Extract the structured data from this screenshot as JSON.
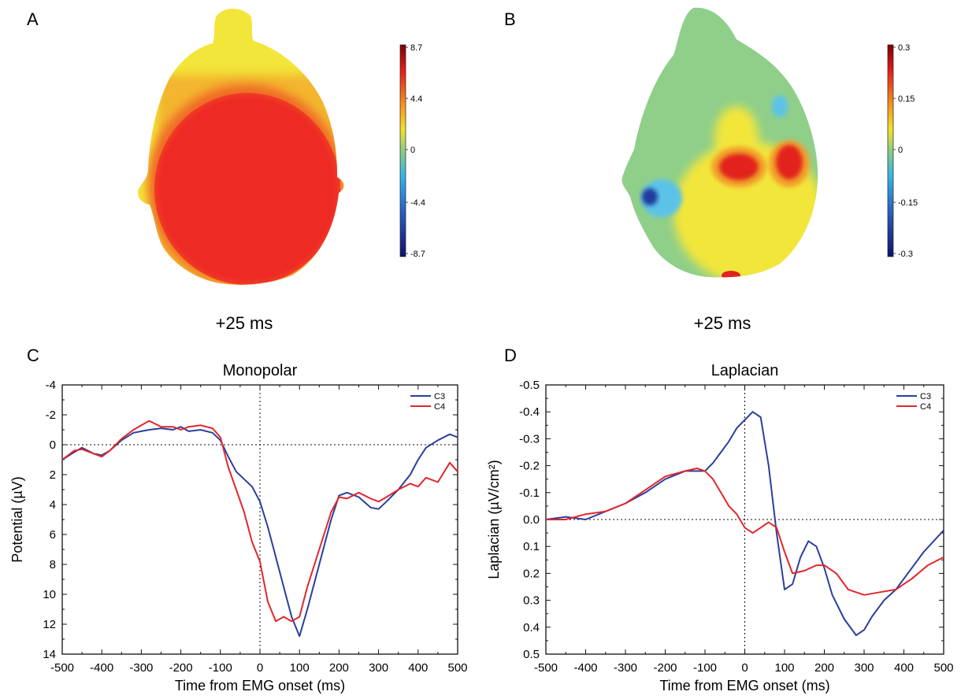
{
  "panels": {
    "A": {
      "letter": "A",
      "time_label": "+25 ms",
      "colorbar": {
        "ticks": [
          "8.7",
          "4.4",
          "0",
          "-4.4",
          "-8.7"
        ],
        "min": -8.7,
        "max": 8.7
      }
    },
    "B": {
      "letter": "B",
      "time_label": "+25 ms",
      "colorbar": {
        "ticks": [
          "0.3",
          "0.15",
          "0",
          "-0.15",
          "-0.3"
        ],
        "min": -0.3,
        "max": 0.3
      }
    },
    "C": {
      "letter": "C"
    },
    "D": {
      "letter": "D"
    }
  },
  "colors": {
    "C3": "#2a3f9e",
    "C4": "#e3262b",
    "head_A_high": "#ee2a24",
    "head_A_low": "#f3e63a",
    "head_B_bg": "#8fcf8a"
  },
  "chart_data": [
    {
      "type": "line",
      "title": "Monopolar",
      "xlabel": "Time from EMG onset (ms)",
      "ylabel": "Potential (µV)",
      "xlim": [
        -500,
        500
      ],
      "ylim": [
        -4,
        14
      ],
      "y_inverted": true,
      "xticks": [
        -500,
        -400,
        -300,
        -200,
        -100,
        0,
        100,
        200,
        300,
        400,
        500
      ],
      "yticks": [
        -4,
        -2,
        0,
        2,
        4,
        6,
        8,
        10,
        12,
        14
      ],
      "ytick_labels": [
        "-4",
        "-2",
        "0",
        "2",
        "4",
        "6",
        "8",
        "10",
        "12",
        "14"
      ],
      "grid": false,
      "legend": "top-right",
      "reference_lines": {
        "x": 0,
        "y": 0
      },
      "series": [
        {
          "name": "C3",
          "color": "#2a3f9e",
          "x": [
            -500,
            -470,
            -450,
            -420,
            -400,
            -380,
            -350,
            -320,
            -300,
            -280,
            -250,
            -220,
            -200,
            -180,
            -150,
            -120,
            -100,
            -80,
            -60,
            -40,
            -20,
            0,
            20,
            40,
            60,
            80,
            100,
            120,
            150,
            180,
            200,
            220,
            250,
            280,
            300,
            320,
            350,
            380,
            400,
            420,
            450,
            480,
            500
          ],
          "y": [
            1.0,
            0.5,
            0.2,
            0.6,
            0.7,
            0.4,
            -0.3,
            -0.8,
            -0.9,
            -1.0,
            -1.1,
            -1.0,
            -1.2,
            -0.9,
            -1.0,
            -0.8,
            -0.3,
            0.8,
            1.8,
            2.3,
            2.8,
            3.8,
            5.5,
            7.5,
            9.5,
            11.5,
            12.8,
            11.0,
            8.0,
            5.0,
            3.4,
            3.2,
            3.5,
            4.2,
            4.3,
            3.8,
            3.0,
            2.0,
            1.0,
            0.2,
            -0.3,
            -0.7,
            -0.5
          ]
        },
        {
          "name": "C4",
          "color": "#e3262b",
          "x": [
            -500,
            -470,
            -450,
            -420,
            -400,
            -380,
            -350,
            -320,
            -300,
            -280,
            -250,
            -220,
            -200,
            -180,
            -150,
            -120,
            -100,
            -80,
            -60,
            -40,
            -20,
            0,
            20,
            40,
            60,
            80,
            100,
            120,
            150,
            180,
            200,
            220,
            250,
            280,
            300,
            320,
            350,
            380,
            400,
            420,
            450,
            480,
            500
          ],
          "y": [
            1.0,
            0.4,
            0.3,
            0.6,
            0.8,
            0.4,
            -0.4,
            -1.0,
            -1.3,
            -1.6,
            -1.2,
            -1.2,
            -1.0,
            -1.2,
            -1.3,
            -1.1,
            -0.5,
            1.5,
            3.0,
            4.5,
            6.5,
            7.8,
            10.5,
            11.8,
            11.5,
            11.8,
            11.5,
            9.5,
            7.0,
            4.5,
            3.5,
            3.6,
            3.2,
            3.6,
            3.8,
            3.5,
            3.0,
            2.6,
            2.8,
            2.2,
            2.5,
            1.2,
            1.8
          ]
        }
      ]
    },
    {
      "type": "line",
      "title": "Laplacian",
      "xlabel": "Time from EMG onset (ms)",
      "ylabel": "Laplacian (µV/cm²)",
      "xlim": [
        -500,
        500
      ],
      "ylim": [
        -0.5,
        0.5
      ],
      "y_inverted": true,
      "xticks": [
        -500,
        -400,
        -300,
        -200,
        -100,
        0,
        100,
        200,
        300,
        400,
        500
      ],
      "yticks": [
        -0.5,
        -0.4,
        -0.3,
        -0.2,
        -0.1,
        0.0,
        0.1,
        0.2,
        0.3,
        0.4,
        0.5
      ],
      "ytick_labels": [
        "-0.5",
        "-0.4",
        "-0.3",
        "-0.2",
        "-0.1",
        "0.0",
        "0.1",
        "0.2",
        "0.3",
        "0.4",
        "0.5"
      ],
      "grid": false,
      "legend": "top-right",
      "reference_lines": {
        "x": 0,
        "y": 0
      },
      "series": [
        {
          "name": "C3",
          "color": "#2a3f9e",
          "x": [
            -500,
            -450,
            -400,
            -350,
            -300,
            -250,
            -200,
            -150,
            -100,
            -80,
            -60,
            -40,
            -20,
            0,
            20,
            40,
            60,
            80,
            100,
            120,
            140,
            160,
            180,
            200,
            220,
            250,
            280,
            300,
            320,
            350,
            380,
            400,
            450,
            500
          ],
          "y": [
            0.0,
            -0.01,
            0.0,
            -0.03,
            -0.06,
            -0.1,
            -0.15,
            -0.18,
            -0.18,
            -0.21,
            -0.25,
            -0.29,
            -0.34,
            -0.37,
            -0.4,
            -0.38,
            -0.2,
            0.05,
            0.26,
            0.24,
            0.14,
            0.08,
            0.1,
            0.18,
            0.28,
            0.37,
            0.43,
            0.41,
            0.36,
            0.3,
            0.26,
            0.22,
            0.12,
            0.04
          ]
        },
        {
          "name": "C4",
          "color": "#e3262b",
          "x": [
            -500,
            -450,
            -400,
            -350,
            -300,
            -250,
            -200,
            -150,
            -120,
            -100,
            -80,
            -60,
            -40,
            -20,
            0,
            20,
            40,
            60,
            80,
            100,
            120,
            150,
            180,
            200,
            230,
            260,
            300,
            340,
            380,
            420,
            460,
            500
          ],
          "y": [
            0.0,
            0.0,
            -0.02,
            -0.03,
            -0.06,
            -0.11,
            -0.16,
            -0.18,
            -0.19,
            -0.18,
            -0.15,
            -0.1,
            -0.05,
            -0.02,
            0.03,
            0.05,
            0.03,
            0.01,
            0.03,
            0.12,
            0.2,
            0.19,
            0.17,
            0.17,
            0.2,
            0.26,
            0.28,
            0.27,
            0.26,
            0.22,
            0.17,
            0.14
          ]
        }
      ]
    }
  ]
}
